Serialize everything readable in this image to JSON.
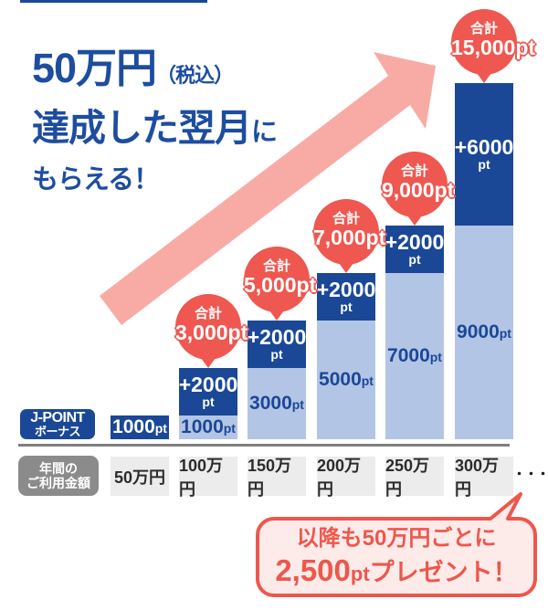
{
  "colors": {
    "navy": "#1a4897",
    "light_blue": "#b3c5e5",
    "red": "#ee5850",
    "pink_arrow": "#f8aba4",
    "footnote_red": "#ef564c",
    "footnote_fill": "#fcebe9",
    "gray_badge": "#8b8b8b",
    "cell_bg": "#ececec",
    "axis_gray": "#7f7f7f",
    "headline_blue": "#1d4d9f"
  },
  "headline": {
    "line1_main": "50万円",
    "line1_paren": "（税込）",
    "line2_main": "達成した翌月",
    "line2_suffix": "に",
    "line3": "もらえる！"
  },
  "legend_badge": {
    "line1": "J-POINT",
    "line2": "ボーナス"
  },
  "axis_badge": {
    "line1": "年間の",
    "line2": "ご利用金額"
  },
  "axis": {
    "ellipsis": "・・・"
  },
  "chart_data": {
    "type": "bar",
    "stacked": true,
    "title": "50万円（税込）達成した翌月にもらえる！",
    "categories": [
      "50万円",
      "100万円",
      "150万円",
      "200万円",
      "250万円",
      "300万円"
    ],
    "xlabel": "年間のご利用金額",
    "ylabel": "J-POINTボーナス",
    "unit": "pt",
    "series": [
      {
        "name": "base",
        "values": [
          1000,
          1000,
          3000,
          5000,
          7000,
          9000
        ]
      },
      {
        "name": "bonus",
        "values": [
          0,
          2000,
          2000,
          2000,
          2000,
          6000
        ]
      }
    ],
    "totals": [
      1000,
      3000,
      5000,
      7000,
      9000,
      15000
    ],
    "annotations": [
      "",
      "合計3,000pt",
      "合計5,000pt",
      "合計7,000pt",
      "合計9,000pt",
      "合計15,000pt"
    ]
  },
  "bars": [
    {
      "segments": [
        {
          "type": "dark",
          "pt": 1000,
          "label": "1000",
          "unit": "pt",
          "layout": "row"
        }
      ]
    },
    {
      "segments": [
        {
          "type": "light",
          "pt": 1000,
          "label": "1000",
          "unit": "pt",
          "layout": "row"
        },
        {
          "type": "dark",
          "pt": 2000,
          "label": "+2000",
          "unit": "pt",
          "layout": "col"
        }
      ],
      "bubble": {
        "prefix": "合計",
        "value": "3,000pt"
      }
    },
    {
      "segments": [
        {
          "type": "light",
          "pt": 3000,
          "label": "3000",
          "unit": "pt",
          "layout": "row"
        },
        {
          "type": "dark",
          "pt": 2000,
          "label": "+2000",
          "unit": "pt",
          "layout": "col"
        }
      ],
      "bubble": {
        "prefix": "合計",
        "value": "5,000pt"
      }
    },
    {
      "segments": [
        {
          "type": "light",
          "pt": 5000,
          "label": "5000",
          "unit": "pt",
          "layout": "row"
        },
        {
          "type": "dark",
          "pt": 2000,
          "label": "+2000",
          "unit": "pt",
          "layout": "col"
        }
      ],
      "bubble": {
        "prefix": "合計",
        "value": "7,000pt"
      }
    },
    {
      "segments": [
        {
          "type": "light",
          "pt": 7000,
          "label": "7000",
          "unit": "pt",
          "layout": "row"
        },
        {
          "type": "dark",
          "pt": 2000,
          "label": "+2000",
          "unit": "pt",
          "layout": "col"
        }
      ],
      "bubble": {
        "prefix": "合計",
        "value": "9,000pt"
      }
    },
    {
      "segments": [
        {
          "type": "light",
          "pt": 9000,
          "label": "9000",
          "unit": "pt",
          "layout": "row"
        },
        {
          "type": "dark",
          "pt": 6000,
          "label": "+6000",
          "unit": "pt",
          "layout": "col"
        }
      ],
      "bubble": {
        "prefix": "合計",
        "value": "15,000pt"
      }
    }
  ],
  "footnote": {
    "line1": "以降も50万円ごとに",
    "line2_strong": "2,500",
    "line2_unit": "pt",
    "line2_rest": "プレゼント！"
  }
}
